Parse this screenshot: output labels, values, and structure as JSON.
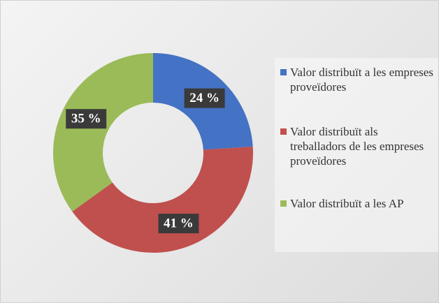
{
  "chart_data": {
    "type": "donut",
    "categories": [
      "Valor distribuït a les empreses proveïdores",
      "Valor distribuït als treballadors de les empreses proveïdores",
      "Valor distribuït a les AP"
    ],
    "values": [
      24,
      41,
      35
    ],
    "value_labels": [
      "24 %",
      "41 %",
      "35 %"
    ],
    "colors": [
      "#4472c4",
      "#c0504d",
      "#9bbb59"
    ],
    "legend": "right"
  }
}
